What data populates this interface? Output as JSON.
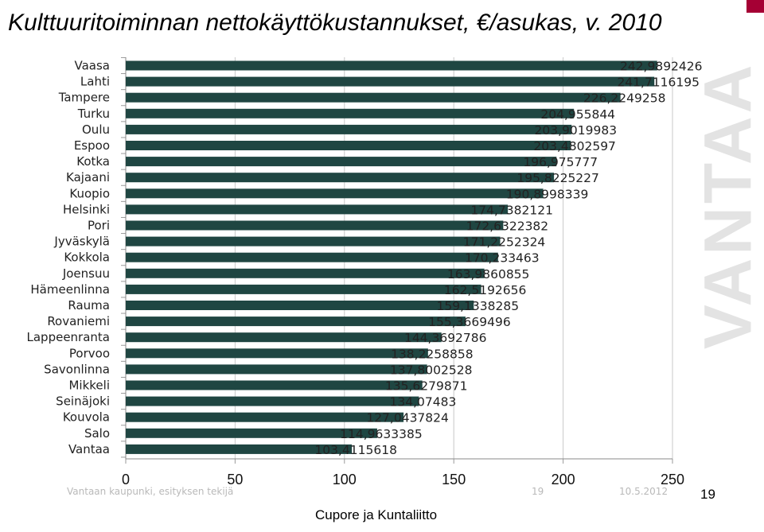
{
  "title": "Kulttuuritoiminnan nettokäyttökustannukset, €/asukas, v. 2010",
  "watermark": "VANTAA",
  "footer": {
    "left": "Vantaan kaupunki, esityksen tekijä",
    "page": "19",
    "date": "10.5.2012",
    "slide_number": "19",
    "source": "Cupore ja Kuntaliitto"
  },
  "colors": {
    "bar": "#1f4642",
    "grid": "#c8c8c8",
    "watermark": "#e3e3e3",
    "corner_mark": "#a50034"
  },
  "chart_data": {
    "type": "bar",
    "orientation": "horizontal",
    "categories": [
      "Vaasa",
      "Lahti",
      "Tampere",
      "Turku",
      "Oulu",
      "Espoo",
      "Kotka",
      "Kajaani",
      "Kuopio",
      "Helsinki",
      "Pori",
      "Jyväskylä",
      "Kokkola",
      "Joensuu",
      "Hämeenlinna",
      "Rauma",
      "Rovaniemi",
      "Lappeenranta",
      "Porvoo",
      "Savonlinna",
      "Mikkeli",
      "Seinäjoki",
      "Kouvola",
      "Salo",
      "Vantaa"
    ],
    "values": [
      242.9892426,
      241.7116195,
      226.2249258,
      204.955844,
      203.9019983,
      203.4802597,
      196.975777,
      195.8225227,
      190.8998339,
      174.7382121,
      172.6322382,
      171.2252324,
      170.233463,
      163.9860855,
      162.5192656,
      159.1338285,
      155.3669496,
      144.3692786,
      138.2258858,
      137.8002528,
      135.6279871,
      134.07483,
      127.0437824,
      114.9633385,
      103.4115618
    ],
    "value_labels": [
      "242,9892426",
      "241,7116195",
      "226,2249258",
      "204,955844",
      "203,9019983",
      "203,4802597",
      "196,975777",
      "195,8225227",
      "190,8998339",
      "174,7382121",
      "172,6322382",
      "171,2252324",
      "170,233463",
      "163,9860855",
      "162,5192656",
      "159,1338285",
      "155,3669496",
      "144,3692786",
      "138,2258858",
      "137,8002528",
      "135,6279871",
      "134,07483",
      "127,0437824",
      "114,9633385",
      "103,4115618"
    ],
    "xticks": [
      "0",
      "50",
      "100",
      "150",
      "200",
      "250"
    ],
    "xlim": [
      0,
      250
    ],
    "title": "Kulttuuritoiminnan nettokäyttökustannukset, €/asukas, v. 2010",
    "xlabel": "",
    "ylabel": "",
    "grid": "vertical",
    "legend": "none"
  }
}
